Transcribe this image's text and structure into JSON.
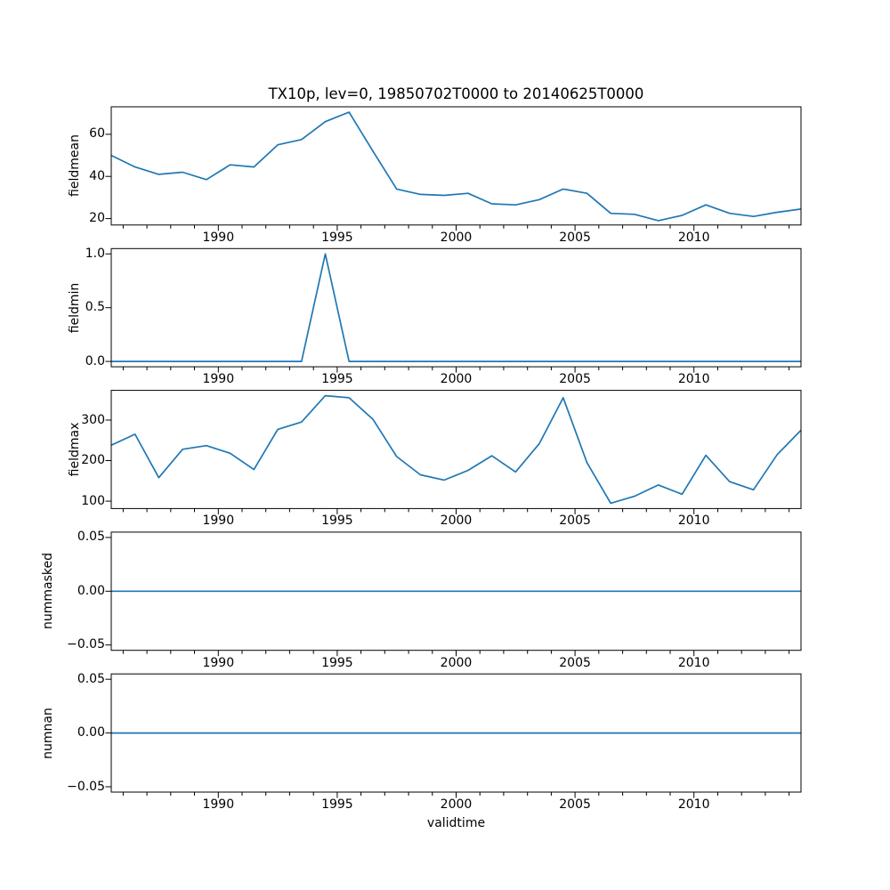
{
  "figure": {
    "title": "TX10p, lev=0, 19850702T0000 to 20140625T0000",
    "xlabel": "validtime",
    "line_color": "#1f77b4",
    "axis_color": "#000000",
    "background_color": "#ffffff"
  },
  "chart_data": [
    {
      "type": "line",
      "ylabel": "fieldmean",
      "x": [
        1985.5,
        1986.5,
        1987.5,
        1988.5,
        1989.5,
        1990.5,
        1991.5,
        1992.5,
        1993.5,
        1994.5,
        1995.5,
        1996.5,
        1997.5,
        1998.5,
        1999.5,
        2000.5,
        2001.5,
        2002.5,
        2003.5,
        2004.5,
        2005.5,
        2006.5,
        2007.5,
        2008.5,
        2009.5,
        2010.5,
        2011.5,
        2012.5,
        2013.5,
        2014.5
      ],
      "values": [
        50,
        44.5,
        41,
        42,
        38.5,
        45.5,
        44.5,
        55,
        57.5,
        66,
        70.5,
        52,
        34,
        31.5,
        31,
        32,
        27,
        26.5,
        29,
        34,
        32,
        22.5,
        22,
        19,
        21.5,
        26.5,
        22.5,
        21,
        23,
        24.5
      ],
      "xlim": [
        1985.5,
        2014.5
      ],
      "ylim": [
        16.95,
        73.05
      ],
      "xticks": [
        1990,
        1995,
        2000,
        2005,
        2010
      ],
      "xtick_labels": [
        "1990",
        "1995",
        "2000",
        "2005",
        "2010"
      ],
      "yticks": [
        20,
        40,
        60
      ],
      "ytick_labels": [
        "20",
        "40",
        "60"
      ],
      "grid": false,
      "legend": null
    },
    {
      "type": "line",
      "ylabel": "fieldmin",
      "x": [
        1985.5,
        1986.5,
        1987.5,
        1988.5,
        1989.5,
        1990.5,
        1991.5,
        1992.5,
        1993.5,
        1994.5,
        1995.5,
        1996.5,
        1997.5,
        1998.5,
        1999.5,
        2000.5,
        2001.5,
        2002.5,
        2003.5,
        2004.5,
        2005.5,
        2006.5,
        2007.5,
        2008.5,
        2009.5,
        2010.5,
        2011.5,
        2012.5,
        2013.5,
        2014.5
      ],
      "values": [
        0,
        0,
        0,
        0,
        0,
        0,
        0,
        0,
        0,
        1,
        0,
        0,
        0,
        0,
        0,
        0,
        0,
        0,
        0,
        0,
        0,
        0,
        0,
        0,
        0,
        0,
        0,
        0,
        0,
        0
      ],
      "xlim": [
        1985.5,
        2014.5
      ],
      "ylim": [
        -0.05,
        1.05
      ],
      "xticks": [
        1990,
        1995,
        2000,
        2005,
        2010
      ],
      "xtick_labels": [
        "1990",
        "1995",
        "2000",
        "2005",
        "2010"
      ],
      "yticks": [
        0,
        0.5,
        1
      ],
      "ytick_labels": [
        "0.0",
        "0.5",
        "1.0"
      ],
      "grid": false,
      "legend": null
    },
    {
      "type": "line",
      "ylabel": "fieldmax",
      "x": [
        1985.5,
        1986.5,
        1987.5,
        1988.5,
        1989.5,
        1990.5,
        1991.5,
        1992.5,
        1993.5,
        1994.5,
        1995.5,
        1996.5,
        1997.5,
        1998.5,
        1999.5,
        2000.5,
        2001.5,
        2002.5,
        2003.5,
        2004.5,
        2005.5,
        2006.5,
        2007.5,
        2008.5,
        2009.5,
        2010.5,
        2011.5,
        2012.5,
        2013.5,
        2014.5
      ],
      "values": [
        238,
        265,
        158,
        228,
        237,
        218,
        178,
        277,
        295,
        360,
        355,
        302,
        210,
        165,
        152,
        176,
        212,
        172,
        242,
        355,
        195,
        95,
        112,
        140,
        117,
        213,
        148,
        128,
        215,
        275
      ],
      "xlim": [
        1985.5,
        2014.5
      ],
      "ylim": [
        81.75,
        373.25
      ],
      "xticks": [
        1990,
        1995,
        2000,
        2005,
        2010
      ],
      "xtick_labels": [
        "1990",
        "1995",
        "2000",
        "2005",
        "2010"
      ],
      "yticks": [
        100,
        200,
        300
      ],
      "ytick_labels": [
        "100",
        "200",
        "300"
      ],
      "grid": false,
      "legend": null
    },
    {
      "type": "line",
      "ylabel": "nummasked",
      "x": [
        1985.5,
        1986.5,
        1987.5,
        1988.5,
        1989.5,
        1990.5,
        1991.5,
        1992.5,
        1993.5,
        1994.5,
        1995.5,
        1996.5,
        1997.5,
        1998.5,
        1999.5,
        2000.5,
        2001.5,
        2002.5,
        2003.5,
        2004.5,
        2005.5,
        2006.5,
        2007.5,
        2008.5,
        2009.5,
        2010.5,
        2011.5,
        2012.5,
        2013.5,
        2014.5
      ],
      "values": [
        0,
        0,
        0,
        0,
        0,
        0,
        0,
        0,
        0,
        0,
        0,
        0,
        0,
        0,
        0,
        0,
        0,
        0,
        0,
        0,
        0,
        0,
        0,
        0,
        0,
        0,
        0,
        0,
        0,
        0
      ],
      "xlim": [
        1985.5,
        2014.5
      ],
      "ylim": [
        -0.055,
        0.055
      ],
      "xticks": [
        1990,
        1995,
        2000,
        2005,
        2010
      ],
      "xtick_labels": [
        "1990",
        "1995",
        "2000",
        "2005",
        "2010"
      ],
      "yticks": [
        -0.05,
        0,
        0.05
      ],
      "ytick_labels": [
        "−0.05",
        "0.00",
        "0.05"
      ],
      "grid": false,
      "legend": null
    },
    {
      "type": "line",
      "ylabel": "numnan",
      "x": [
        1985.5,
        1986.5,
        1987.5,
        1988.5,
        1989.5,
        1990.5,
        1991.5,
        1992.5,
        1993.5,
        1994.5,
        1995.5,
        1996.5,
        1997.5,
        1998.5,
        1999.5,
        2000.5,
        2001.5,
        2002.5,
        2003.5,
        2004.5,
        2005.5,
        2006.5,
        2007.5,
        2008.5,
        2009.5,
        2010.5,
        2011.5,
        2012.5,
        2013.5,
        2014.5
      ],
      "values": [
        0,
        0,
        0,
        0,
        0,
        0,
        0,
        0,
        0,
        0,
        0,
        0,
        0,
        0,
        0,
        0,
        0,
        0,
        0,
        0,
        0,
        0,
        0,
        0,
        0,
        0,
        0,
        0,
        0,
        0
      ],
      "xlim": [
        1985.5,
        2014.5
      ],
      "ylim": [
        -0.055,
        0.055
      ],
      "xticks": [
        1990,
        1995,
        2000,
        2005,
        2010
      ],
      "xtick_labels": [
        "1990",
        "1995",
        "2000",
        "2005",
        "2010"
      ],
      "yticks": [
        -0.05,
        0,
        0.05
      ],
      "ytick_labels": [
        "−0.05",
        "0.00",
        "0.05"
      ],
      "grid": false,
      "legend": null
    }
  ]
}
